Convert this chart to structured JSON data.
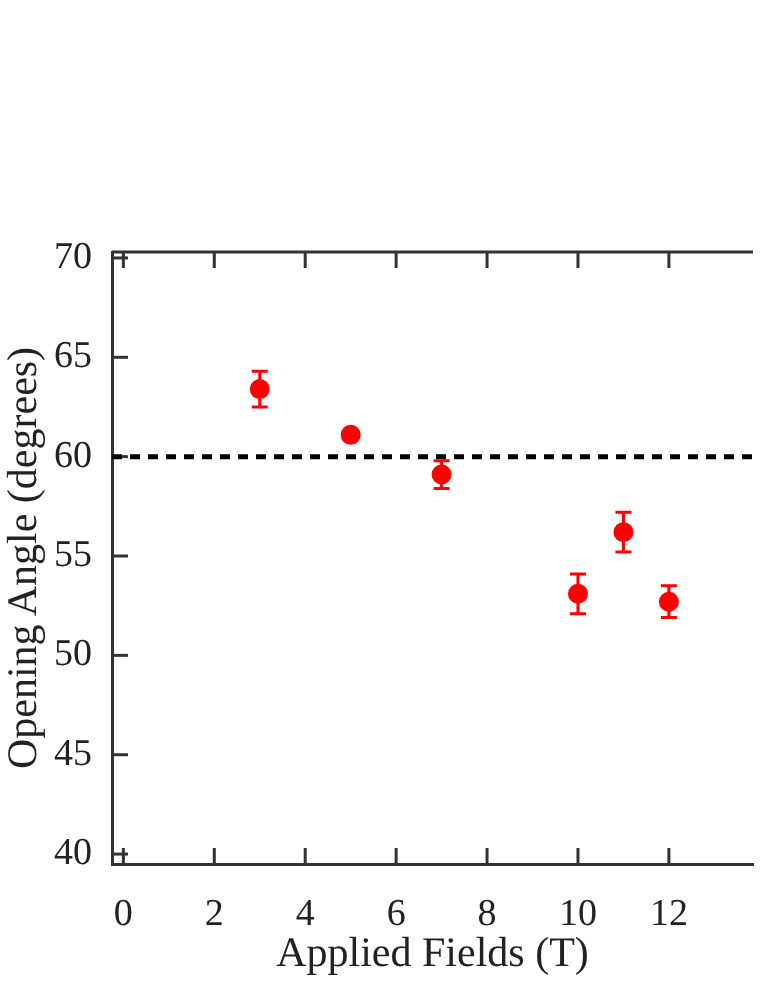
{
  "chart_data": {
    "type": "scatter",
    "xlabel": "Applied Fields (T)",
    "ylabel": "Opening Angle (degrees)",
    "x": [
      3,
      5,
      7,
      10,
      11,
      12
    ],
    "series": [
      {
        "color": "#ff0000",
        "values": [
          63.4,
          61.1,
          59.1,
          53.1,
          56.2,
          52.7
        ],
        "errors": [
          0.9,
          0.2,
          0.7,
          1.0,
          1.0,
          0.8
        ]
      }
    ],
    "xlim": [
      -0.25,
      13.85
    ],
    "xticks": [
      0,
      2,
      4,
      6,
      8,
      10,
      12
    ],
    "ylim": [
      39.5,
      70.3
    ],
    "yticks": [
      40,
      45,
      50,
      55,
      60,
      65,
      70
    ],
    "ref_lines": [
      {
        "axis": "y",
        "value": 60,
        "color": "#000000",
        "line_style": "dashed"
      }
    ],
    "marker": "circle",
    "grid": false,
    "legend": false
  }
}
